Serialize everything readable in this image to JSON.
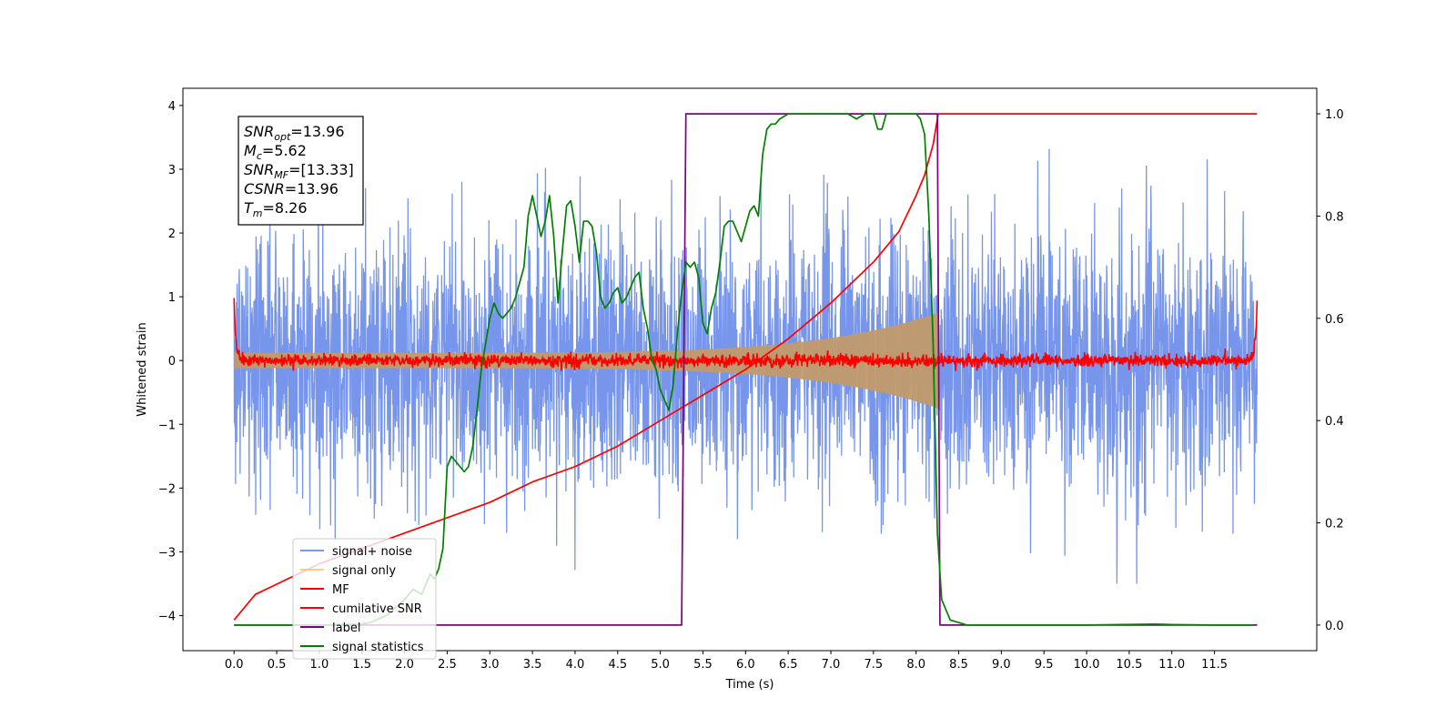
{
  "chart_data": {
    "type": "line",
    "title": "",
    "xlabel": "Time (s)",
    "ylabel": "Whitened strain",
    "xlim": [
      -0.6,
      12.7
    ],
    "ylim": [
      -4.55,
      4.27
    ],
    "ylim_right": [
      -0.05,
      1.05
    ],
    "grid": false,
    "legend_position": "lower-left",
    "x_ticks": [
      "0.0",
      "0.5",
      "1.0",
      "1.5",
      "2.0",
      "2.5",
      "3.0",
      "3.5",
      "4.0",
      "4.5",
      "5.0",
      "5.5",
      "6.0",
      "6.5",
      "7.0",
      "7.5",
      "8.0",
      "8.5",
      "9.0",
      "9.5",
      "10.0",
      "10.5",
      "11.0",
      "11.5"
    ],
    "y_ticks_left": [
      "4",
      "3",
      "2",
      "1",
      "0",
      "−1",
      "−2",
      "−3",
      "−4"
    ],
    "y_ticks_right": [
      "1.0",
      "0.8",
      "0.6",
      "0.4",
      "0.2",
      "0.0"
    ],
    "annotations": [
      {
        "main": "SNR",
        "sub": "opt",
        "rest": "=13.96"
      },
      {
        "main": "M",
        "sub": "c",
        "rest": "=5.62"
      },
      {
        "main": "SNR",
        "sub": "MF",
        "rest": "=[13.33]"
      },
      {
        "main": "CSNR",
        "sub": "",
        "rest": "=13.96"
      },
      {
        "main": "T",
        "sub": "m",
        "rest": "=8.26"
      }
    ],
    "series": [
      {
        "name": "signal+ noise",
        "color": "#6488e8",
        "axis": "left",
        "kind": "noise",
        "t_range": [
          0,
          12
        ],
        "std": 1.0,
        "amp_max": 3.5
      },
      {
        "name": "signal only",
        "color": "#ffc66a",
        "axis": "left",
        "kind": "chirp",
        "t_range": [
          0,
          8.26
        ],
        "amp_start": 0.12,
        "amp_end": 0.75
      },
      {
        "name": "MF",
        "color": "#ff0000",
        "axis": "left",
        "kind": "mf",
        "t_range": [
          0,
          12
        ],
        "std": 0.05,
        "edge_peak": 1.0
      },
      {
        "name": "cumilative SNR",
        "color": "#ff0000",
        "axis": "right",
        "x": [
          0,
          0.25,
          0.5,
          1,
          1.5,
          2,
          2.5,
          3,
          3.5,
          4,
          4.5,
          5,
          5.5,
          6,
          6.5,
          7,
          7.5,
          7.8,
          8.0,
          8.1,
          8.2,
          8.26,
          8.3,
          12
        ],
        "y": [
          0.01,
          0.06,
          0.08,
          0.12,
          0.15,
          0.18,
          0.21,
          0.24,
          0.28,
          0.31,
          0.35,
          0.4,
          0.45,
          0.5,
          0.56,
          0.63,
          0.71,
          0.77,
          0.84,
          0.88,
          0.94,
          1.0,
          1.0,
          1.0
        ]
      },
      {
        "name": "label",
        "color": "#800080",
        "axis": "right",
        "x": [
          0,
          5.25,
          5.3,
          8.25,
          8.28,
          12
        ],
        "y": [
          0,
          0,
          1,
          1,
          0,
          0
        ]
      },
      {
        "name": "signal statistics",
        "color": "#008000",
        "axis": "right",
        "x": [
          0,
          0.5,
          1.0,
          1.5,
          1.6,
          1.8,
          2.0,
          2.1,
          2.2,
          2.3,
          2.35,
          2.4,
          2.45,
          2.5,
          2.55,
          2.6,
          2.65,
          2.7,
          2.75,
          2.8,
          2.85,
          2.9,
          2.95,
          3.0,
          3.05,
          3.1,
          3.15,
          3.2,
          3.25,
          3.3,
          3.35,
          3.4,
          3.45,
          3.5,
          3.55,
          3.6,
          3.65,
          3.7,
          3.75,
          3.8,
          3.85,
          3.9,
          3.95,
          4.0,
          4.05,
          4.1,
          4.15,
          4.2,
          4.25,
          4.3,
          4.35,
          4.4,
          4.45,
          4.5,
          4.55,
          4.6,
          4.65,
          4.7,
          4.75,
          4.8,
          4.85,
          4.9,
          4.95,
          5.0,
          5.05,
          5.1,
          5.15,
          5.2,
          5.25,
          5.3,
          5.35,
          5.4,
          5.45,
          5.5,
          5.55,
          5.6,
          5.65,
          5.7,
          5.75,
          5.8,
          5.85,
          5.9,
          5.95,
          6.0,
          6.05,
          6.1,
          6.15,
          6.2,
          6.25,
          6.3,
          6.35,
          6.4,
          6.5,
          6.6,
          6.7,
          6.8,
          7.0,
          7.2,
          7.3,
          7.4,
          7.5,
          7.55,
          7.6,
          7.65,
          7.7,
          7.8,
          7.9,
          8.0,
          8.05,
          8.1,
          8.15,
          8.2,
          8.25,
          8.3,
          8.4,
          8.6,
          9.0,
          10.0,
          10.8,
          11.0,
          11.5,
          11.95
        ],
        "y": [
          0.0,
          0.0,
          0.0,
          0.002,
          0.005,
          0.02,
          0.05,
          0.07,
          0.06,
          0.1,
          0.09,
          0.11,
          0.15,
          0.31,
          0.33,
          0.32,
          0.31,
          0.3,
          0.31,
          0.35,
          0.42,
          0.5,
          0.55,
          0.6,
          0.63,
          0.61,
          0.6,
          0.61,
          0.62,
          0.64,
          0.67,
          0.7,
          0.8,
          0.84,
          0.8,
          0.76,
          0.79,
          0.84,
          0.76,
          0.63,
          0.73,
          0.82,
          0.83,
          0.78,
          0.71,
          0.79,
          0.79,
          0.78,
          0.73,
          0.64,
          0.62,
          0.63,
          0.65,
          0.66,
          0.63,
          0.64,
          0.66,
          0.68,
          0.69,
          0.62,
          0.58,
          0.52,
          0.5,
          0.46,
          0.44,
          0.42,
          0.47,
          0.57,
          0.65,
          0.71,
          0.7,
          0.71,
          0.68,
          0.59,
          0.57,
          0.62,
          0.65,
          0.71,
          0.78,
          0.79,
          0.79,
          0.77,
          0.75,
          0.78,
          0.81,
          0.82,
          0.8,
          0.92,
          0.97,
          0.98,
          0.98,
          0.99,
          1.0,
          1.0,
          1.0,
          1.0,
          1.0,
          1.0,
          0.99,
          1.0,
          1.0,
          0.97,
          0.97,
          1.0,
          1.0,
          1.0,
          1.0,
          1.0,
          0.99,
          0.96,
          0.8,
          0.55,
          0.18,
          0.05,
          0.01,
          0.0,
          0.0,
          0.0,
          0.002,
          0.001,
          0.0,
          0.0
        ]
      }
    ]
  }
}
